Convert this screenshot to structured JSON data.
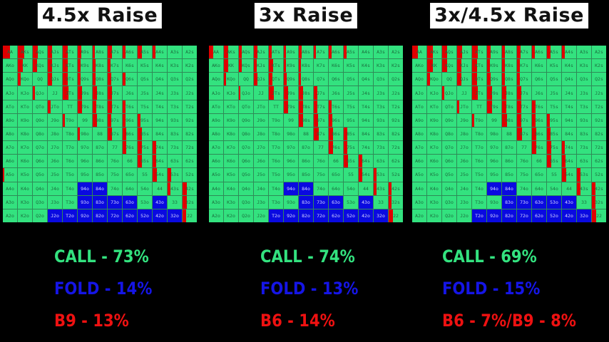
{
  "ranks": [
    "A",
    "K",
    "Q",
    "J",
    "T",
    "9",
    "8",
    "7",
    "6",
    "5",
    "4",
    "3",
    "2"
  ],
  "colors": {
    "call": "#33e27f",
    "fold": "#0a0ae0",
    "raise": "#e00000"
  },
  "panels": [
    {
      "title": "4.5x Raise",
      "call": "CALL - 73%",
      "fold": "FOLD - 14%",
      "raise": "B9 - 13%",
      "fold_hands": [
        "94o",
        "84o",
        "93o",
        "83o",
        "73o",
        "63o",
        "43o",
        "92o",
        "82o",
        "72o",
        "62o",
        "52o",
        "42o",
        "32o",
        "T2o",
        "J2o"
      ],
      "raise_freq": {
        "AA": 0.5,
        "AKs": 0.45,
        "AQs": 0.35,
        "AJs": 0.3,
        "ATs": 0.35,
        "A9s": 0.25,
        "A8s": 0.15,
        "A7s": 0.3,
        "A6s": 0.2,
        "A5s": 0.3,
        "A4s": 0.2,
        "KK": 0.35,
        "KQs": 0.3,
        "KJs": 0.3,
        "KTs": 0.35,
        "K9s": 0.2,
        "K8s": 0.2,
        "K7s": 0.2,
        "QJs": 0.3,
        "QTs": 0.35,
        "Q9s": 0.2,
        "Q8s": 0.2,
        "Q7s": 0.25,
        "Q6s": 0.2,
        "JTs": 0.4,
        "J9s": 0.3,
        "J8s": 0.3,
        "J7s": 0.3,
        "T9s": 0.3,
        "T8s": 0.25,
        "T7s": 0.3,
        "T6s": 0.2,
        "98s": 0.3,
        "97s": 0.25,
        "96s": 0.2,
        "95s": 0.2,
        "87s": 0.3,
        "86s": 0.25,
        "85s": 0.3,
        "76s": 0.25,
        "75s": 0.3,
        "74s": 0.25,
        "65s": 0.3,
        "64s": 0.25,
        "54s": 0.3,
        "53s": 0.25,
        "43s": 0.2,
        "42s": 0.3,
        "32s": 0.3,
        "KQo": 0.2,
        "QJo": 0.15,
        "JTo": 0.2,
        "T9o": 0.15,
        "98o": 0.15,
        "A5o": 0.1,
        "22": 0.25
      }
    },
    {
      "title": "3x Raise",
      "call": "CALL - 74%",
      "fold": "FOLD - 13%",
      "raise": "B6 - 14%",
      "fold_hands": [
        "94o",
        "84o",
        "83o",
        "73o",
        "63o",
        "43o",
        "92o",
        "82o",
        "72o",
        "62o",
        "52o",
        "42o",
        "32o",
        "T2o"
      ],
      "raise_freq": {
        "AA": 0.3,
        "AKs": 0.3,
        "AQs": 0.2,
        "AJs": 0.25,
        "ATs": 0.2,
        "A9s": 0.15,
        "A8s": 0.2,
        "A7s": 0.15,
        "A6s": 0.2,
        "A5s": 0.2,
        "KK": 0.3,
        "KQs": 0.2,
        "KJs": 0.2,
        "KTs": 0.3,
        "K9s": 0.15,
        "K8s": 0.15,
        "QJs": 0.25,
        "QTs": 0.25,
        "Q9s": 0.2,
        "Q8s": 0.15,
        "JTs": 0.35,
        "J9s": 0.3,
        "J8s": 0.3,
        "J7s": 0.25,
        "T9s": 0.3,
        "T8s": 0.3,
        "T7s": 0.25,
        "T6s": 0.2,
        "98s": 0.3,
        "97s": 0.3,
        "96s": 0.25,
        "87s": 0.35,
        "86s": 0.3,
        "85s": 0.25,
        "76s": 0.3,
        "75s": 0.25,
        "65s": 0.3,
        "64s": 0.25,
        "54s": 0.25,
        "53s": 0.2,
        "43s": 0.2,
        "42s": 0.2,
        "32s": 0.2,
        "KQo": 0.15,
        "QJo": 0.1,
        "22": 0.3
      }
    },
    {
      "title": "3x/4.5x Raise",
      "call": "CALL - 69%",
      "fold": "FOLD - 15%",
      "raise": "B6 - 7%/B9 - 8%",
      "fold_hands": [
        "94o",
        "84o",
        "83o",
        "73o",
        "63o",
        "53o",
        "43o",
        "92o",
        "82o",
        "72o",
        "62o",
        "52o",
        "42o",
        "32o",
        "T2o"
      ],
      "raise_freq": {
        "AA": 0.4,
        "AKs": 0.4,
        "AQs": 0.35,
        "AJs": 0.35,
        "ATs": 0.4,
        "A9s": 0.25,
        "A8s": 0.2,
        "A7s": 0.25,
        "A6s": 0.2,
        "A5s": 0.25,
        "A4s": 0.2,
        "KK": 0.4,
        "KQs": 0.35,
        "KJs": 0.3,
        "KTs": 0.35,
        "K9s": 0.2,
        "K8s": 0.2,
        "K7s": 0.2,
        "QJs": 0.3,
        "QTs": 0.35,
        "Q9s": 0.25,
        "Q8s": 0.2,
        "Q7s": 0.2,
        "JTs": 0.4,
        "J9s": 0.35,
        "J8s": 0.3,
        "J7s": 0.3,
        "T9s": 0.35,
        "T8s": 0.3,
        "T7s": 0.3,
        "T6s": 0.25,
        "98s": 0.35,
        "97s": 0.3,
        "96s": 0.25,
        "95s": 0.2,
        "87s": 0.35,
        "86s": 0.3,
        "85s": 0.25,
        "76s": 0.3,
        "75s": 0.3,
        "74s": 0.2,
        "65s": 0.3,
        "64s": 0.25,
        "54s": 0.3,
        "53s": 0.25,
        "43s": 0.25,
        "42s": 0.25,
        "32s": 0.25,
        "KQo": 0.2,
        "QJo": 0.15,
        "JTo": 0.15,
        "T9o": 0.15,
        "22": 0.3
      }
    }
  ]
}
